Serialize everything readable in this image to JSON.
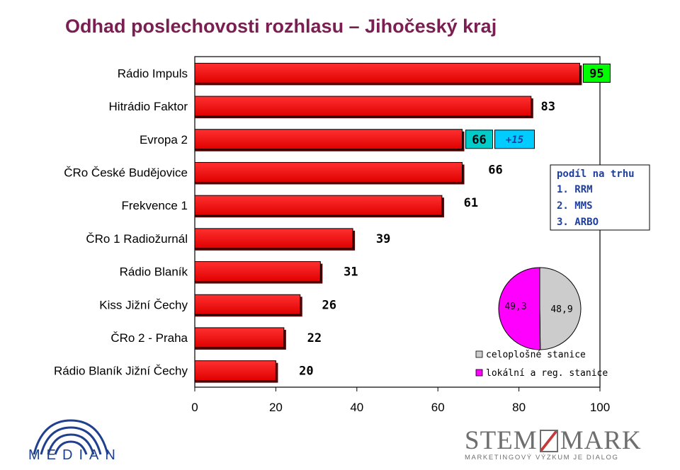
{
  "title": "Odhad poslechovosti rozhlasu – Jihočeský kraj",
  "chart_data": {
    "type": "bar",
    "orientation": "horizontal",
    "title": "Odhad poslechovosti rozhlasu – Jihočeský kraj",
    "categories": [
      "Rádio Impuls",
      "Hitrádio Faktor",
      "Evropa 2",
      "ČRo České Budějovice",
      "Frekvence 1",
      "ČRo 1 Radiožurnál",
      "Rádio Blaník",
      "Kiss Jižní Čechy",
      "ČRo 2 - Praha",
      "Rádio Blaník Jižní Čechy"
    ],
    "values": [
      95,
      83,
      66,
      66,
      61,
      39,
      31,
      26,
      22,
      20
    ],
    "xlim": [
      0,
      100
    ],
    "xticks": [
      "0",
      "20",
      "40",
      "60",
      "80",
      "100"
    ],
    "bar_color": "#ff0000",
    "highlight_label_colors": {
      "Rádio Impuls": "#00ff00",
      "Evropa 2": "#00cccc"
    },
    "annotation_change": "+15",
    "annotation_change_color": "#00ccff",
    "share_box": {
      "title": "podíl na trhu",
      "items": [
        "1. RRM",
        "2. MMS",
        "3. ARBO"
      ],
      "color": "#1f3f9f"
    },
    "pie": {
      "type": "pie",
      "slices": [
        {
          "name": "celoplošné stanice",
          "value": 48.9,
          "label": "48,9",
          "color": "#cccccc"
        },
        {
          "name": "lokální a reg. stanice",
          "value": 49.3,
          "label": "49,3",
          "color": "#ff00ff"
        }
      ]
    }
  },
  "logos": {
    "median": "MEDIAN",
    "stemmark_left": "STEM",
    "stemmark_right": "MARK",
    "stemmark_sub": "MARKETINGOVÝ VÝZKUM JE DIALOG"
  }
}
